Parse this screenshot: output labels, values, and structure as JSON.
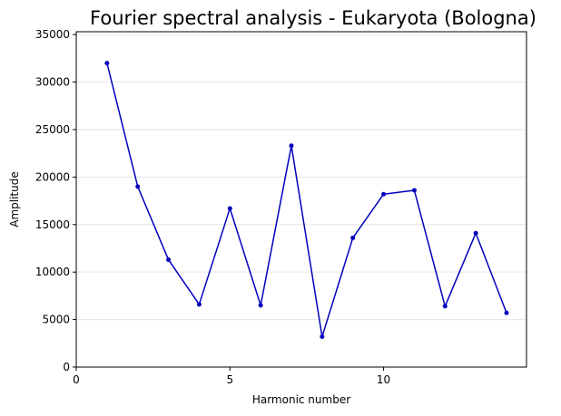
{
  "chart_data": {
    "type": "line",
    "title": "Fourier spectral analysis - Eukaryota (Bologna)",
    "xlabel": "Harmonic number",
    "ylabel": "Amplitude",
    "xlim": [
      0,
      14.65
    ],
    "ylim": [
      0,
      35300
    ],
    "xticks": [
      0,
      5,
      10
    ],
    "yticks": [
      0,
      5000,
      10000,
      15000,
      20000,
      25000,
      30000,
      35000
    ],
    "grid": "horizontal",
    "colors": {
      "line": "#0000bb",
      "marker": "#0000bb",
      "grid": "#e6e6e6",
      "axes": "#000000"
    },
    "series": [
      {
        "x": [
          1,
          2,
          3,
          4,
          5,
          6,
          7,
          8,
          9,
          10,
          11,
          12,
          13,
          14
        ],
        "values": [
          32000,
          19000,
          11300,
          6600,
          16700,
          6500,
          23300,
          3200,
          13600,
          18200,
          18600,
          6400,
          14100,
          5700
        ]
      }
    ]
  }
}
